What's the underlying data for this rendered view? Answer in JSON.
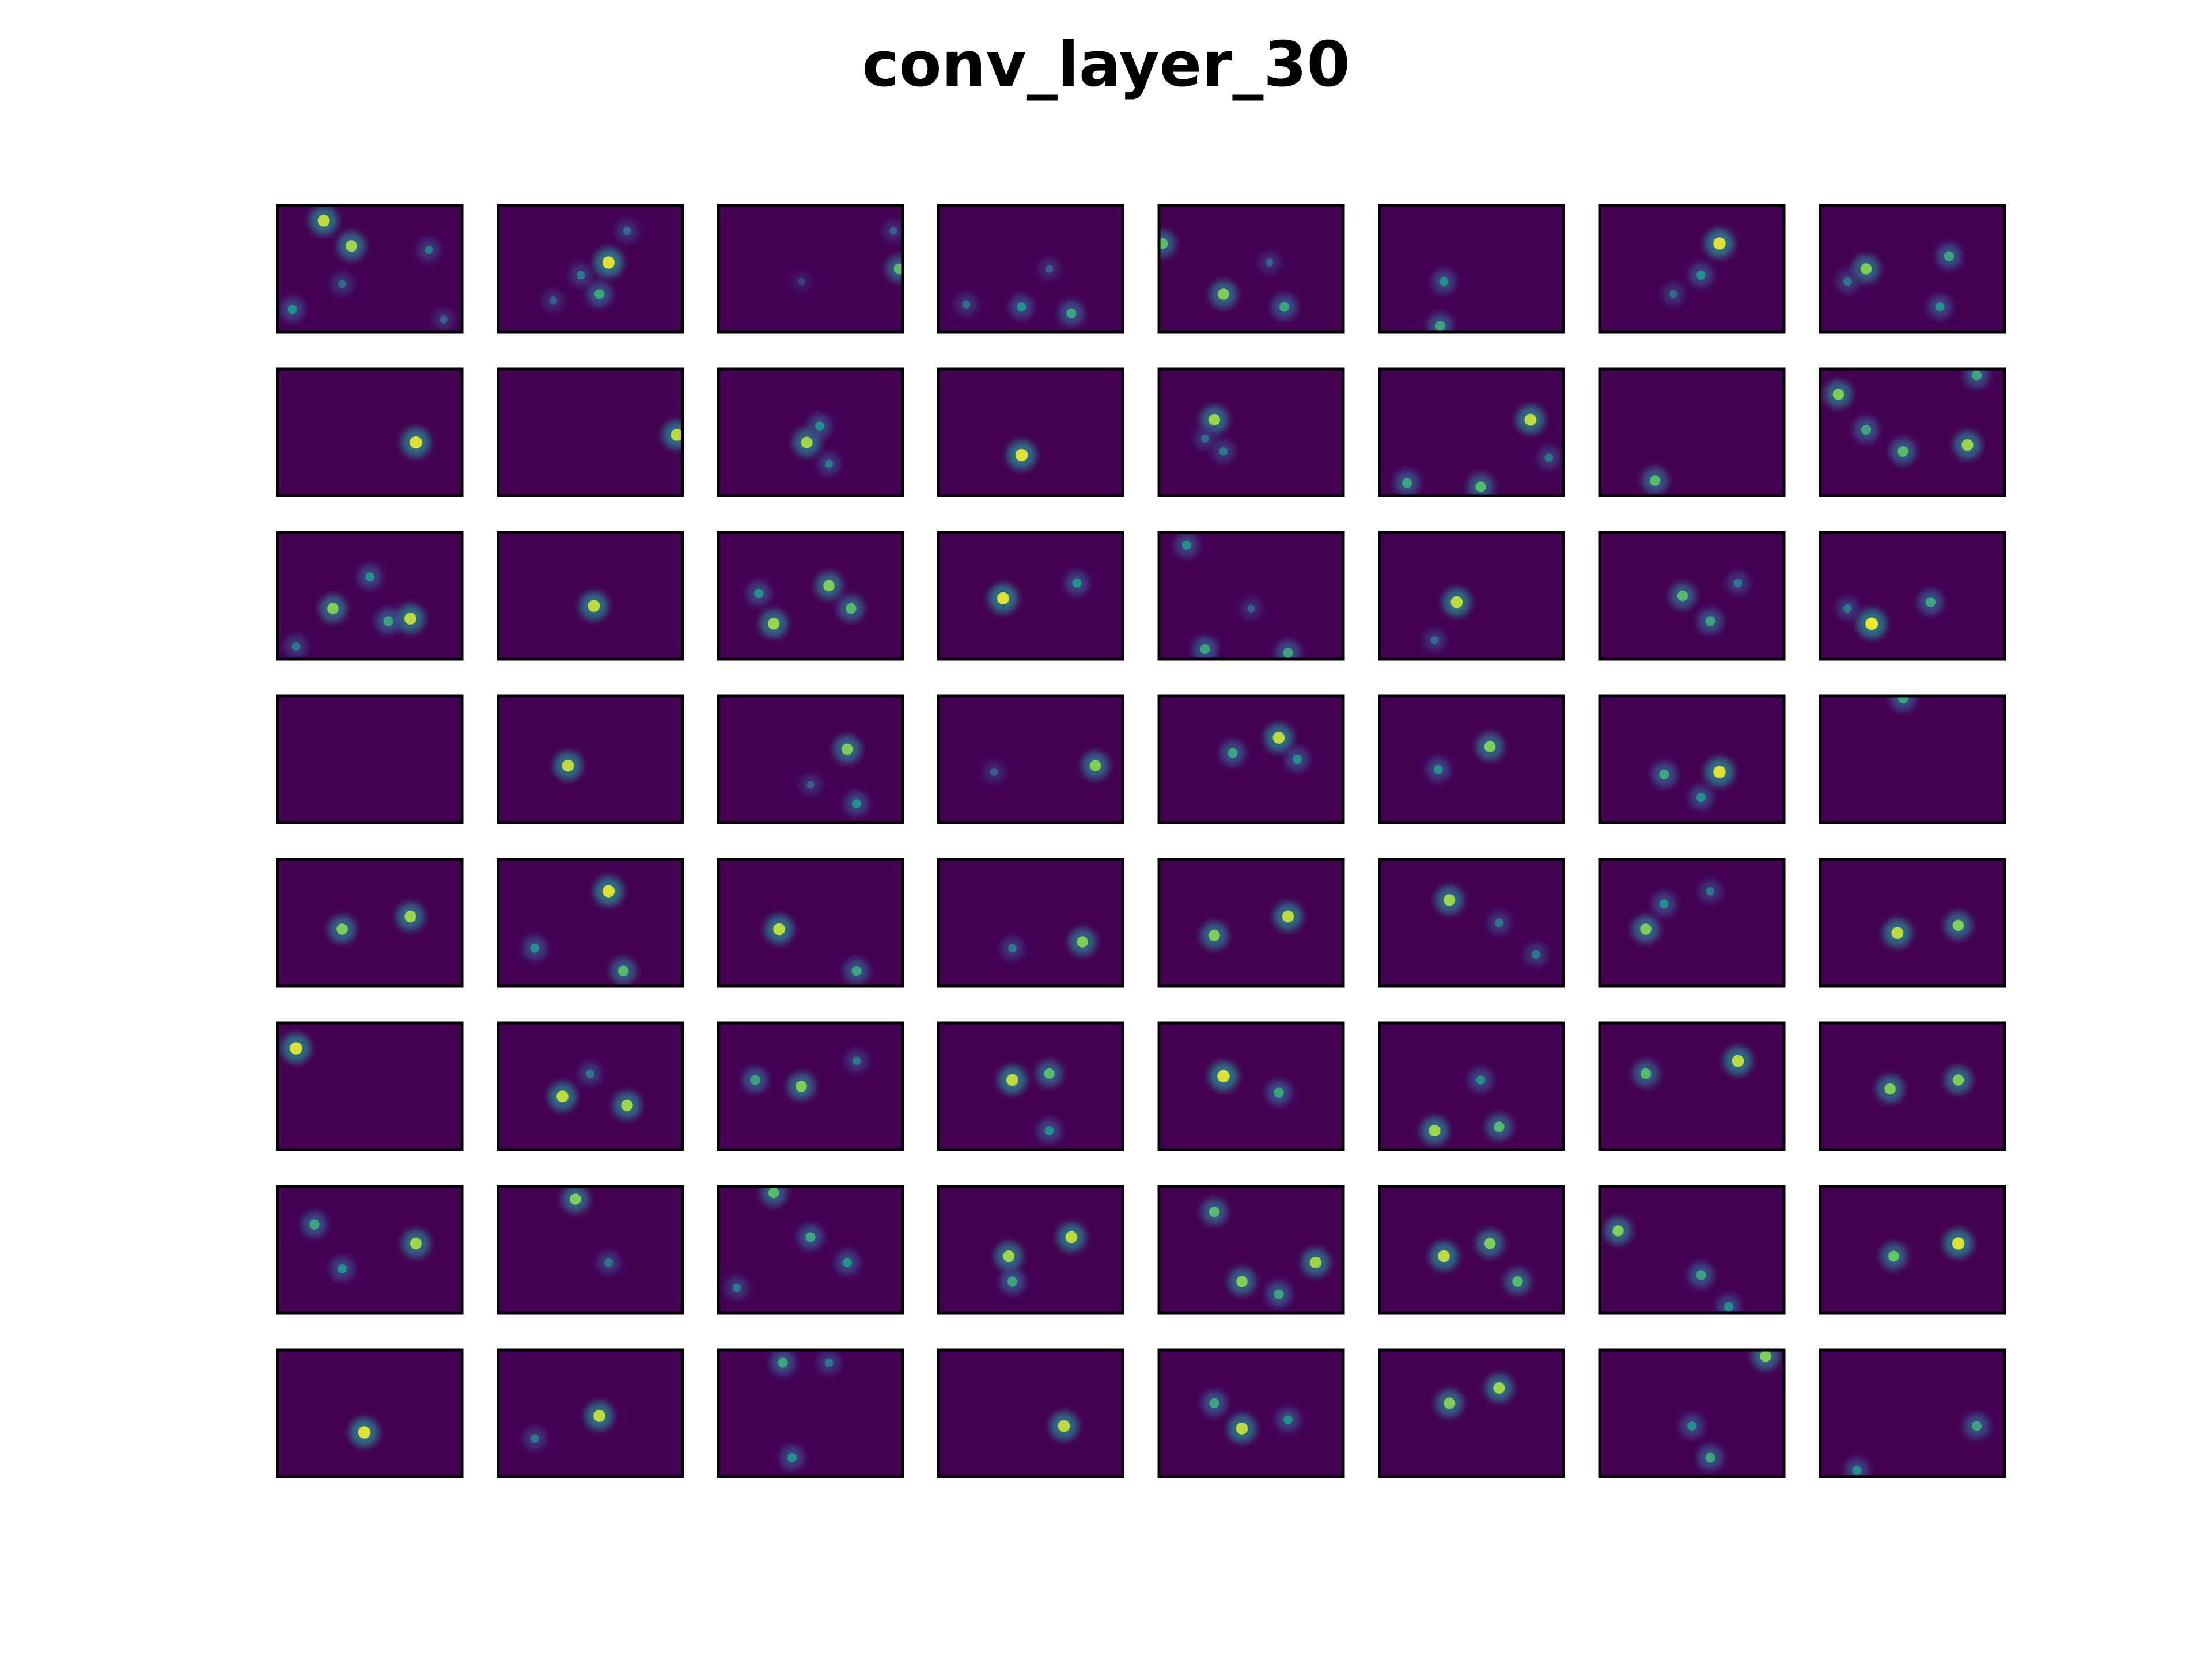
{
  "title": "conv_layer_30",
  "chart_data": {
    "type": "heatmap",
    "title": "conv_layer_30",
    "layout": {
      "rows": 8,
      "cols": 8
    },
    "colormap": "viridis",
    "colors": {
      "background": "#440154",
      "frame": "#000000"
    },
    "map_aspect": "16:11",
    "axes_visible": false,
    "note_grid": [
      10,
      16
    ],
    "maps": [
      [
        [
          0.25,
          0.12,
          0.9
        ],
        [
          0.4,
          0.32,
          0.85
        ],
        [
          0.82,
          0.35,
          0.4
        ],
        [
          0.35,
          0.62,
          0.35
        ],
        [
          0.08,
          0.82,
          0.5
        ],
        [
          0.9,
          0.9,
          0.3
        ]
      ],
      [
        [
          0.6,
          0.45,
          0.95
        ],
        [
          0.55,
          0.7,
          0.6
        ],
        [
          0.45,
          0.55,
          0.4
        ],
        [
          0.7,
          0.2,
          0.35
        ],
        [
          0.3,
          0.75,
          0.3
        ]
      ],
      [
        [
          0.98,
          0.5,
          0.7
        ],
        [
          0.45,
          0.6,
          0.2
        ],
        [
          0.95,
          0.2,
          0.3
        ]
      ],
      [
        [
          0.45,
          0.8,
          0.5
        ],
        [
          0.72,
          0.85,
          0.6
        ],
        [
          0.15,
          0.78,
          0.35
        ],
        [
          0.6,
          0.5,
          0.3
        ]
      ],
      [
        [
          0.35,
          0.7,
          0.8
        ],
        [
          0.68,
          0.8,
          0.6
        ],
        [
          0.02,
          0.3,
          0.7
        ],
        [
          0.6,
          0.45,
          0.3
        ]
      ],
      [
        [
          0.35,
          0.6,
          0.5
        ],
        [
          0.33,
          0.95,
          0.6
        ]
      ],
      [
        [
          0.65,
          0.3,
          0.95
        ],
        [
          0.55,
          0.55,
          0.5
        ],
        [
          0.4,
          0.7,
          0.35
        ]
      ],
      [
        [
          0.25,
          0.5,
          0.8
        ],
        [
          0.7,
          0.4,
          0.6
        ],
        [
          0.65,
          0.8,
          0.5
        ],
        [
          0.15,
          0.6,
          0.4
        ]
      ],
      [
        [
          0.75,
          0.58,
          0.95
        ]
      ],
      [
        [
          0.97,
          0.52,
          0.9
        ]
      ],
      [
        [
          0.48,
          0.58,
          0.85
        ],
        [
          0.55,
          0.45,
          0.5
        ],
        [
          0.6,
          0.75,
          0.4
        ]
      ],
      [
        [
          0.45,
          0.68,
          0.95
        ]
      ],
      [
        [
          0.3,
          0.4,
          0.85
        ],
        [
          0.35,
          0.65,
          0.4
        ],
        [
          0.25,
          0.55,
          0.35
        ]
      ],
      [
        [
          0.82,
          0.4,
          0.9
        ],
        [
          0.55,
          0.93,
          0.7
        ],
        [
          0.15,
          0.9,
          0.6
        ],
        [
          0.92,
          0.7,
          0.4
        ]
      ],
      [
        [
          0.3,
          0.88,
          0.7
        ]
      ],
      [
        [
          0.1,
          0.2,
          0.8
        ],
        [
          0.85,
          0.05,
          0.6
        ],
        [
          0.8,
          0.6,
          0.85
        ],
        [
          0.45,
          0.65,
          0.7
        ],
        [
          0.25,
          0.48,
          0.6
        ]
      ],
      [
        [
          0.3,
          0.6,
          0.8
        ],
        [
          0.72,
          0.68,
          0.9
        ],
        [
          0.5,
          0.35,
          0.5
        ],
        [
          0.6,
          0.7,
          0.6
        ],
        [
          0.1,
          0.9,
          0.4
        ]
      ],
      [
        [
          0.52,
          0.58,
          0.9
        ]
      ],
      [
        [
          0.3,
          0.72,
          0.85
        ],
        [
          0.6,
          0.42,
          0.8
        ],
        [
          0.72,
          0.6,
          0.7
        ],
        [
          0.22,
          0.48,
          0.5
        ]
      ],
      [
        [
          0.35,
          0.52,
          0.95
        ],
        [
          0.75,
          0.4,
          0.5
        ]
      ],
      [
        [
          0.25,
          0.92,
          0.6
        ],
        [
          0.7,
          0.95,
          0.6
        ],
        [
          0.15,
          0.1,
          0.5
        ],
        [
          0.5,
          0.6,
          0.3
        ]
      ],
      [
        [
          0.42,
          0.55,
          0.9
        ],
        [
          0.3,
          0.85,
          0.35
        ]
      ],
      [
        [
          0.45,
          0.5,
          0.7
        ],
        [
          0.6,
          0.7,
          0.6
        ],
        [
          0.75,
          0.4,
          0.4
        ]
      ],
      [
        [
          0.28,
          0.72,
          0.98
        ],
        [
          0.6,
          0.55,
          0.6
        ],
        [
          0.15,
          0.6,
          0.4
        ]
      ],
      [],
      [
        [
          0.38,
          0.55,
          0.9
        ]
      ],
      [
        [
          0.7,
          0.42,
          0.8
        ],
        [
          0.75,
          0.85,
          0.5
        ],
        [
          0.5,
          0.7,
          0.3
        ]
      ],
      [
        [
          0.85,
          0.55,
          0.8
        ],
        [
          0.3,
          0.6,
          0.3
        ]
      ],
      [
        [
          0.65,
          0.33,
          0.9
        ],
        [
          0.4,
          0.45,
          0.6
        ],
        [
          0.75,
          0.5,
          0.5
        ]
      ],
      [
        [
          0.6,
          0.4,
          0.8
        ],
        [
          0.32,
          0.58,
          0.5
        ]
      ],
      [
        [
          0.65,
          0.6,
          0.95
        ],
        [
          0.35,
          0.62,
          0.6
        ],
        [
          0.55,
          0.8,
          0.5
        ]
      ],
      [
        [
          0.45,
          0.02,
          0.6
        ]
      ],
      [
        [
          0.35,
          0.55,
          0.8
        ],
        [
          0.72,
          0.45,
          0.85
        ]
      ],
      [
        [
          0.6,
          0.25,
          0.95
        ],
        [
          0.2,
          0.7,
          0.5
        ],
        [
          0.68,
          0.88,
          0.7
        ]
      ],
      [
        [
          0.33,
          0.55,
          0.9
        ],
        [
          0.75,
          0.88,
          0.6
        ]
      ],
      [
        [
          0.4,
          0.7,
          0.4
        ],
        [
          0.78,
          0.65,
          0.8
        ]
      ],
      [
        [
          0.3,
          0.6,
          0.8
        ],
        [
          0.7,
          0.45,
          0.9
        ]
      ],
      [
        [
          0.38,
          0.32,
          0.85
        ],
        [
          0.65,
          0.5,
          0.4
        ],
        [
          0.85,
          0.75,
          0.4
        ]
      ],
      [
        [
          0.25,
          0.55,
          0.8
        ],
        [
          0.35,
          0.35,
          0.5
        ],
        [
          0.6,
          0.25,
          0.4
        ]
      ],
      [
        [
          0.42,
          0.58,
          0.9
        ],
        [
          0.75,
          0.52,
          0.8
        ]
      ],
      [
        [
          0.1,
          0.2,
          0.95
        ]
      ],
      [
        [
          0.35,
          0.58,
          0.9
        ],
        [
          0.7,
          0.65,
          0.85
        ],
        [
          0.5,
          0.4,
          0.4
        ]
      ],
      [
        [
          0.45,
          0.5,
          0.8
        ],
        [
          0.2,
          0.45,
          0.6
        ],
        [
          0.75,
          0.3,
          0.4
        ]
      ],
      [
        [
          0.4,
          0.45,
          0.9
        ],
        [
          0.6,
          0.4,
          0.7
        ],
        [
          0.6,
          0.85,
          0.5
        ]
      ],
      [
        [
          0.35,
          0.42,
          0.95
        ],
        [
          0.65,
          0.55,
          0.6
        ]
      ],
      [
        [
          0.3,
          0.85,
          0.85
        ],
        [
          0.65,
          0.82,
          0.7
        ],
        [
          0.55,
          0.45,
          0.5
        ]
      ],
      [
        [
          0.25,
          0.4,
          0.7
        ],
        [
          0.75,
          0.3,
          0.9
        ]
      ],
      [
        [
          0.38,
          0.52,
          0.8
        ],
        [
          0.75,
          0.45,
          0.8
        ]
      ],
      [
        [
          0.2,
          0.3,
          0.6
        ],
        [
          0.75,
          0.45,
          0.85
        ],
        [
          0.35,
          0.65,
          0.5
        ]
      ],
      [
        [
          0.42,
          0.1,
          0.8
        ],
        [
          0.6,
          0.6,
          0.4
        ]
      ],
      [
        [
          0.3,
          0.05,
          0.7
        ],
        [
          0.5,
          0.4,
          0.6
        ],
        [
          0.7,
          0.6,
          0.5
        ],
        [
          0.1,
          0.8,
          0.4
        ]
      ],
      [
        [
          0.38,
          0.55,
          0.85
        ],
        [
          0.72,
          0.4,
          0.9
        ],
        [
          0.4,
          0.75,
          0.6
        ]
      ],
      [
        [
          0.3,
          0.2,
          0.7
        ],
        [
          0.45,
          0.75,
          0.8
        ],
        [
          0.85,
          0.6,
          0.85
        ],
        [
          0.65,
          0.85,
          0.6
        ]
      ],
      [
        [
          0.35,
          0.55,
          0.9
        ],
        [
          0.6,
          0.45,
          0.8
        ],
        [
          0.75,
          0.75,
          0.7
        ]
      ],
      [
        [
          0.1,
          0.35,
          0.8
        ],
        [
          0.55,
          0.7,
          0.6
        ],
        [
          0.7,
          0.95,
          0.5
        ]
      ],
      [
        [
          0.4,
          0.55,
          0.75
        ],
        [
          0.75,
          0.45,
          0.95
        ]
      ],
      [
        [
          0.47,
          0.65,
          0.95
        ]
      ],
      [
        [
          0.2,
          0.7,
          0.4
        ],
        [
          0.55,
          0.52,
          0.9
        ]
      ],
      [
        [
          0.35,
          0.1,
          0.6
        ],
        [
          0.4,
          0.85,
          0.5
        ],
        [
          0.6,
          0.1,
          0.4
        ]
      ],
      [
        [
          0.68,
          0.6,
          0.9
        ]
      ],
      [
        [
          0.3,
          0.42,
          0.6
        ],
        [
          0.45,
          0.62,
          0.9
        ],
        [
          0.7,
          0.55,
          0.5
        ]
      ],
      [
        [
          0.38,
          0.42,
          0.8
        ],
        [
          0.65,
          0.3,
          0.85
        ]
      ],
      [
        [
          0.5,
          0.6,
          0.5
        ],
        [
          0.6,
          0.85,
          0.6
        ],
        [
          0.9,
          0.05,
          0.8
        ]
      ],
      [
        [
          0.2,
          0.95,
          0.5
        ],
        [
          0.85,
          0.6,
          0.6
        ]
      ]
    ]
  }
}
